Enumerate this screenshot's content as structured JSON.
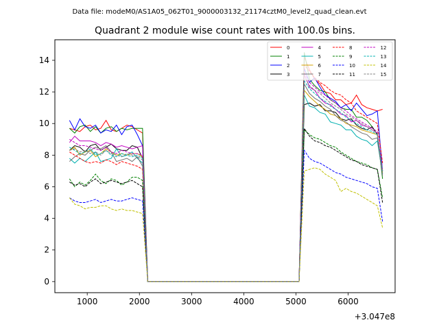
{
  "figure": {
    "suptitle": "Data file: modeM0/AS1A05_062T01_9000003132_21174cztM0_level2_quad_clean.evt"
  },
  "chart_data": {
    "type": "line",
    "title": "Quadrant 2 module wise count rates with 100.0s bins.",
    "xlabel": "",
    "ylabel": "",
    "x_offset_label": "+3.047e8",
    "xlim": [
      380,
      6900
    ],
    "ylim": [
      -0.7,
      15.3
    ],
    "xticks": [
      1000,
      2000,
      3000,
      4000,
      5000,
      6000
    ],
    "yticks": [
      0,
      2,
      4,
      6,
      8,
      10,
      12,
      14
    ],
    "xtick_labels": [
      "1000",
      "2000",
      "3000",
      "4000",
      "5000",
      "6000"
    ],
    "ytick_labels": [
      "0",
      "2",
      "4",
      "6",
      "8",
      "10",
      "12",
      "14"
    ],
    "grid": false,
    "legend_position": "top-right",
    "legend_columns": 4,
    "x": [
      660,
      760,
      860,
      960,
      1060,
      1160,
      1260,
      1360,
      1460,
      1560,
      1660,
      1760,
      1860,
      1960,
      2060,
      2160,
      2260,
      2360,
      2460,
      2560,
      2660,
      2760,
      2860,
      2960,
      3060,
      3160,
      3260,
      3360,
      3460,
      3560,
      3660,
      3760,
      3860,
      3960,
      4060,
      4160,
      4260,
      4360,
      4460,
      4560,
      4660,
      4760,
      4860,
      4960,
      5060,
      5160,
      5260,
      5360,
      5460,
      5560,
      5660,
      5760,
      5860,
      5960,
      6060,
      6160,
      6260,
      6360,
      6460,
      6560,
      6660
    ],
    "series": [
      {
        "name": "0",
        "color": "#ff0000",
        "dash": "solid",
        "pre": [
          9.7,
          9.6,
          9.5,
          9.8,
          9.9,
          9.6,
          9.7,
          10.2,
          9.6,
          9.5,
          9.7,
          9.9,
          9.8,
          9.6,
          9.4
        ],
        "post": [
          14.2,
          13.4,
          12.8,
          12.5,
          12.0,
          11.9,
          11.5,
          11.5,
          11.2,
          11.3,
          11.8,
          11.2,
          11.0,
          10.9,
          10.8,
          10.9
        ]
      },
      {
        "name": "1",
        "color": "#008000",
        "dash": "solid",
        "pre": [
          9.7,
          9.4,
          9.8,
          9.9,
          9.5,
          9.8,
          9.4,
          9.7,
          9.8,
          9.5,
          9.7,
          9.6,
          9.7,
          9.7,
          9.7
        ],
        "post": [
          14.5,
          12.8,
          12.4,
          12.1,
          12.0,
          11.5,
          11.3,
          11.0,
          10.9,
          10.9,
          10.4,
          10.4,
          10.2,
          9.8,
          9.3,
          6.5
        ]
      },
      {
        "name": "2",
        "color": "#0000ff",
        "dash": "solid",
        "pre": [
          10.2,
          9.6,
          10.3,
          9.8,
          9.7,
          9.9,
          9.4,
          9.6,
          9.5,
          9.9,
          9.3,
          9.8,
          9.9,
          9.3,
          8.6
        ],
        "post": [
          13.5,
          12.6,
          12.9,
          12.3,
          11.8,
          11.6,
          11.4,
          11.0,
          11.2,
          10.8,
          11.3,
          10.9,
          10.5,
          10.6,
          10.8,
          7.0
        ]
      },
      {
        "name": "3",
        "color": "#000000",
        "dash": "solid",
        "pre": [
          8.3,
          8.6,
          8.5,
          8.2,
          8.6,
          8.7,
          8.3,
          8.5,
          8.7,
          8.4,
          8.3,
          8.3,
          8.6,
          8.5,
          7.8
        ],
        "post": [
          11.2,
          11.3,
          11.1,
          11.2,
          10.8,
          10.8,
          10.7,
          10.3,
          10.2,
          10.3,
          9.9,
          9.7,
          9.6,
          9.8,
          9.3,
          7.0
        ]
      },
      {
        "name": "4",
        "color": "#c000c0",
        "dash": "solid",
        "pre": [
          8.8,
          9.2,
          8.9,
          8.9,
          8.9,
          8.8,
          8.6,
          8.8,
          8.7,
          8.5,
          8.6,
          8.5,
          8.4,
          8.5,
          8.6
        ],
        "post": [
          13.1,
          12.3,
          12.1,
          11.6,
          11.3,
          11.2,
          10.9,
          10.6,
          10.5,
          10.1,
          10.2,
          9.9,
          9.8,
          9.6,
          9.4,
          6.8
        ]
      },
      {
        "name": "5",
        "color": "#00b0b0",
        "dash": "solid",
        "pre": [
          7.8,
          7.5,
          7.8,
          7.6,
          7.9,
          8.2,
          7.6,
          7.7,
          7.8,
          8.4,
          7.9,
          8.0,
          8.2,
          7.8,
          7.5
        ],
        "post": [
          11.8,
          11.1,
          11.0,
          10.7,
          10.6,
          10.1,
          10.0,
          9.9,
          9.6,
          9.6,
          9.2,
          9.0,
          8.9,
          8.6,
          8.9,
          6.8
        ]
      },
      {
        "name": "6",
        "color": "#d0a000",
        "dash": "solid",
        "pre": [
          8.3,
          8.5,
          8.0,
          8.2,
          8.3,
          7.9,
          8.1,
          8.4,
          8.2,
          8.0,
          8.1,
          8.0,
          8.1,
          8.1,
          7.9
        ],
        "post": [
          12.1,
          11.7,
          11.4,
          11.1,
          10.9,
          10.6,
          10.5,
          10.3,
          10.0,
          9.9,
          9.8,
          9.6,
          9.5,
          9.4,
          9.3,
          6.9
        ]
      },
      {
        "name": "7",
        "color": "#707070",
        "dash": "solid",
        "pre": [
          7.6,
          7.9,
          8.1,
          8.0,
          8.3,
          8.5,
          8.4,
          8.6,
          8.2,
          7.6,
          7.7,
          7.8,
          7.6,
          7.9,
          7.3
        ],
        "post": [
          12.5,
          11.9,
          11.6,
          11.4,
          11.1,
          10.9,
          10.5,
          10.2,
          10.1,
          9.8,
          9.6,
          9.4,
          9.3,
          9.0,
          9.1,
          6.7
        ]
      },
      {
        "name": "8",
        "color": "#ff0000",
        "dash": "dashed",
        "pre": [
          8.2,
          8.0,
          7.8,
          7.6,
          7.5,
          7.6,
          7.5,
          7.7,
          7.6,
          7.4,
          7.6,
          7.5,
          7.4,
          7.3,
          7.1
        ],
        "post": [
          13.7,
          13.3,
          12.9,
          12.6,
          12.4,
          12.1,
          11.9,
          11.8,
          11.5,
          11.3,
          10.8,
          10.6,
          10.4,
          10.2,
          10.0,
          7.5
        ]
      },
      {
        "name": "9",
        "color": "#008000",
        "dash": "dashed",
        "pre": [
          6.5,
          6.0,
          6.3,
          6.1,
          6.4,
          6.8,
          6.4,
          6.2,
          6.5,
          6.4,
          6.1,
          6.3,
          6.6,
          6.6,
          6.4
        ],
        "post": [
          9.6,
          9.3,
          9.1,
          9.0,
          8.8,
          8.6,
          8.5,
          8.2,
          8.0,
          7.8,
          7.6,
          7.5,
          7.4,
          7.2,
          7.1,
          5.3
        ]
      },
      {
        "name": "10",
        "color": "#0000ff",
        "dash": "dashed",
        "pre": [
          5.3,
          5.1,
          5.0,
          5.0,
          5.1,
          5.2,
          5.0,
          5.1,
          5.2,
          5.1,
          5.1,
          5.2,
          5.3,
          5.2,
          5.1
        ],
        "post": [
          8.3,
          7.8,
          7.6,
          7.5,
          7.3,
          7.1,
          6.9,
          6.8,
          6.6,
          6.5,
          6.4,
          6.3,
          6.2,
          6.0,
          5.9,
          3.8
        ]
      },
      {
        "name": "11",
        "color": "#000000",
        "dash": "dashed",
        "pre": [
          6.3,
          6.1,
          6.2,
          6.0,
          6.3,
          6.5,
          6.2,
          6.3,
          6.4,
          6.3,
          6.2,
          6.3,
          6.4,
          6.2,
          6.0
        ],
        "post": [
          9.7,
          9.2,
          8.9,
          8.8,
          8.6,
          8.5,
          8.3,
          8.1,
          7.9,
          7.7,
          7.6,
          7.4,
          7.3,
          7.2,
          7.1,
          5.0
        ]
      },
      {
        "name": "12",
        "color": "#c000c0",
        "dash": "dashed",
        "pre": [
          9.0,
          8.8,
          8.6,
          8.6,
          8.5,
          8.4,
          8.3,
          8.5,
          8.2,
          8.1,
          8.3,
          8.2,
          8.1,
          8.1,
          8.0
        ],
        "post": [
          13.2,
          12.6,
          12.3,
          12.0,
          11.8,
          11.5,
          11.3,
          11.0,
          10.8,
          10.5,
          10.3,
          10.1,
          9.9,
          9.7,
          9.5,
          7.0
        ]
      },
      {
        "name": "13",
        "color": "#00b0b0",
        "dash": "dashed",
        "pre": [
          8.5,
          8.3,
          8.1,
          8.2,
          8.4,
          8.0,
          8.1,
          8.3,
          8.0,
          7.9,
          8.1,
          8.0,
          7.9,
          8.0,
          7.8
        ],
        "post": [
          12.7,
          12.2,
          11.9,
          11.6,
          11.4,
          11.1,
          10.9,
          10.7,
          10.4,
          10.2,
          10.0,
          9.8,
          9.6,
          9.5,
          9.3,
          6.9
        ]
      },
      {
        "name": "14",
        "color": "#c0c000",
        "dash": "dashed",
        "pre": [
          5.3,
          4.9,
          4.8,
          4.6,
          4.7,
          4.7,
          4.8,
          4.8,
          4.6,
          4.5,
          4.6,
          4.5,
          4.5,
          4.4,
          4.3
        ],
        "post": [
          7.0,
          7.1,
          7.2,
          7.1,
          6.8,
          6.6,
          6.4,
          5.7,
          5.9,
          5.7,
          5.6,
          5.4,
          5.2,
          5.0,
          4.8,
          3.4
        ]
      },
      {
        "name": "15",
        "color": "#808080",
        "dash": "dashed",
        "pre": [
          8.3,
          8.4,
          8.2,
          8.3,
          8.1,
          8.2,
          8.0,
          8.3,
          8.1,
          8.0,
          7.9,
          8.1,
          8.0,
          7.9,
          7.7
        ],
        "post": [
          13.0,
          12.4,
          12.1,
          11.9,
          11.6,
          11.3,
          11.1,
          10.9,
          10.6,
          10.4,
          10.2,
          10.0,
          9.8,
          9.6,
          9.4,
          7.0
        ]
      }
    ]
  }
}
